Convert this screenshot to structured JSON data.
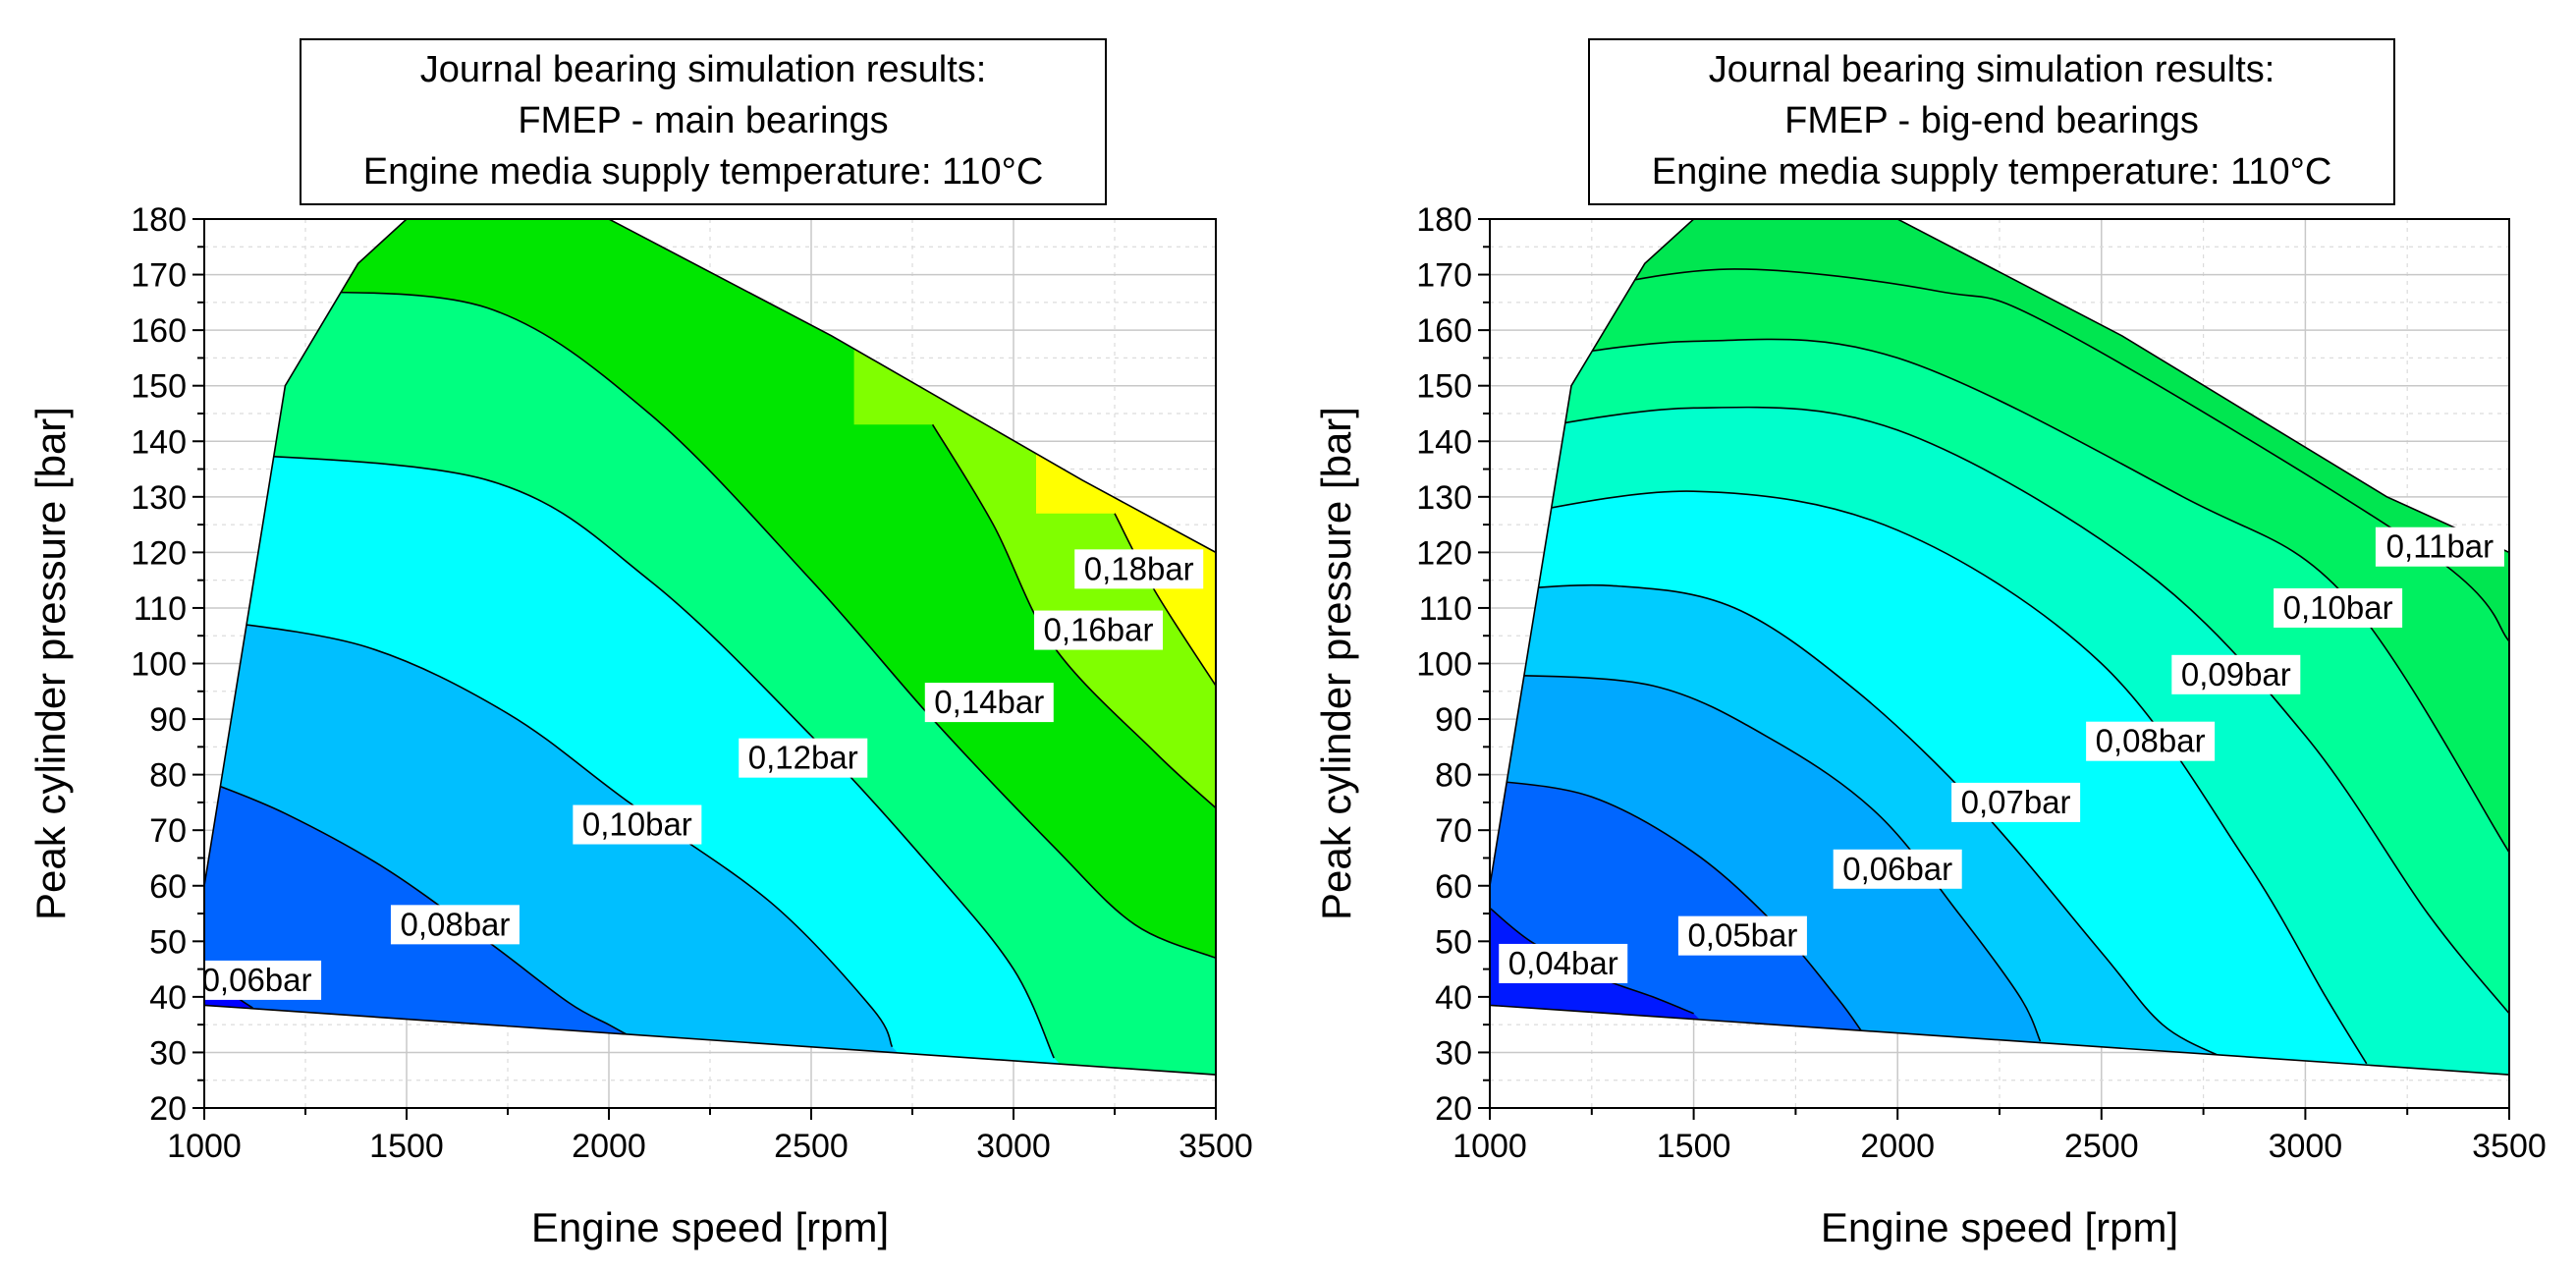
{
  "chart_data": [
    {
      "type": "contour",
      "title_lines": [
        "Journal bearing simulation results:",
        "FMEP - main bearings",
        "Engine media supply temperature: 110°C"
      ],
      "xlabel": "Engine speed [rpm]",
      "ylabel": "Peak cylinder pressure [bar]",
      "xlim": [
        1000,
        3500
      ],
      "ylim": [
        20,
        180
      ],
      "xticks": [
        1000,
        1500,
        2000,
        2500,
        3000,
        3500
      ],
      "yticks": [
        20,
        30,
        40,
        50,
        60,
        70,
        80,
        90,
        100,
        110,
        120,
        130,
        140,
        150,
        160,
        170,
        180
      ],
      "grid": true,
      "domain_boundary": [
        [
          1000,
          38.5
        ],
        [
          3500,
          26
        ],
        [
          3500,
          120
        ],
        [
          3170,
          133
        ],
        [
          2550,
          159
        ],
        [
          2000,
          180
        ],
        [
          1500,
          180
        ],
        [
          1380,
          172
        ],
        [
          1200,
          150
        ],
        [
          1000,
          60
        ]
      ],
      "fill_colors": [
        "#0000ff",
        "#0064ff",
        "#00bfff",
        "#00ffff",
        "#00ff80",
        "#00e600",
        "#80ff00",
        "#ffff00",
        "#ff8000"
      ],
      "contour_levels": [
        {
          "label": "0,06bar",
          "value": 0.06,
          "line": [
            [
              1000,
              46
            ],
            [
              1040,
              43
            ],
            [
              1080,
              40
            ],
            [
              1120,
              38
            ]
          ],
          "label_pos": [
            1130,
            43
          ]
        },
        {
          "label": "0,08bar",
          "value": 0.08,
          "line": [
            [
              1000,
              79
            ],
            [
              1200,
              73
            ],
            [
              1450,
              63
            ],
            [
              1700,
              50
            ],
            [
              1900,
              39
            ],
            [
              2000,
              35
            ],
            [
              2050,
              33
            ]
          ],
          "label_pos": [
            1620,
            53
          ]
        },
        {
          "label": "0,10bar",
          "value": 0.1,
          "line": [
            [
              1000,
              108
            ],
            [
              1400,
              103
            ],
            [
              1750,
              91
            ],
            [
              2050,
              75
            ],
            [
              2400,
              57
            ],
            [
              2650,
              38
            ],
            [
              2700,
              31
            ]
          ],
          "label_pos": [
            2070,
            71
          ]
        },
        {
          "label": "0,12bar",
          "value": 0.12,
          "line": [
            [
              1000,
              138
            ],
            [
              1700,
              133
            ],
            [
              2100,
              115
            ],
            [
              2500,
              87
            ],
            [
              2800,
              63
            ],
            [
              3000,
              45
            ],
            [
              3100,
              29
            ]
          ],
          "label_pos": [
            2480,
            83
          ]
        },
        {
          "label": "0,14bar",
          "value": 0.14,
          "line": [
            [
              1200,
              167
            ],
            [
              1700,
              164
            ],
            [
              2100,
              145
            ],
            [
              2500,
              115
            ],
            [
              2800,
              90
            ],
            [
              3100,
              67
            ],
            [
              3300,
              53
            ],
            [
              3500,
              47
            ]
          ],
          "label_pos": [
            2940,
            93
          ]
        },
        {
          "label": "0,16bar",
          "value": 0.16,
          "line": [
            [
              2800,
              143
            ],
            [
              2950,
              125
            ],
            [
              3100,
              103
            ],
            [
              3350,
              84
            ],
            [
              3500,
              74
            ]
          ],
          "label_pos": [
            3210,
            106
          ]
        },
        {
          "label": "0,18bar",
          "value": 0.18,
          "line": [
            [
              3250,
              127
            ],
            [
              3350,
              113
            ],
            [
              3500,
              96
            ]
          ],
          "label_pos": [
            3310,
            117
          ]
        }
      ]
    },
    {
      "type": "contour",
      "title_lines": [
        "Journal bearing simulation results:",
        "FMEP - big-end bearings",
        "Engine media supply temperature: 110°C"
      ],
      "xlabel": "Engine speed [rpm]",
      "ylabel": "Peak cylinder pressure [bar]",
      "xlim": [
        1000,
        3500
      ],
      "ylim": [
        20,
        180
      ],
      "xticks": [
        1000,
        1500,
        2000,
        2500,
        3000,
        3500
      ],
      "yticks": [
        20,
        30,
        40,
        50,
        60,
        70,
        80,
        90,
        100,
        110,
        120,
        130,
        140,
        150,
        160,
        170,
        180
      ],
      "grid": true,
      "domain_boundary": [
        [
          1000,
          38.5
        ],
        [
          3500,
          26
        ],
        [
          3500,
          120
        ],
        [
          3200,
          130
        ],
        [
          2550,
          159
        ],
        [
          2000,
          180
        ],
        [
          1500,
          180
        ],
        [
          1380,
          172
        ],
        [
          1200,
          150
        ],
        [
          1000,
          60
        ]
      ],
      "fill_colors": [
        "#0019ff",
        "#0066ff",
        "#00a8ff",
        "#00ccff",
        "#00ffff",
        "#00ffcc",
        "#00ff99",
        "#00f060",
        "#00e650"
      ],
      "contour_levels": [
        {
          "label": "0,04bar",
          "value": 0.04,
          "line": [
            [
              1000,
              56
            ],
            [
              1100,
              50
            ],
            [
              1250,
              44
            ],
            [
              1400,
              40
            ],
            [
              1500,
              37
            ]
          ],
          "label_pos": [
            1180,
            46
          ]
        },
        {
          "label": "0,05bar",
          "value": 0.05,
          "line": [
            [
              1000,
              79
            ],
            [
              1250,
              76
            ],
            [
              1500,
              66
            ],
            [
              1700,
              53
            ],
            [
              1850,
              40
            ],
            [
              1910,
              34
            ]
          ],
          "label_pos": [
            1620,
            51
          ]
        },
        {
          "label": "0,06bar",
          "value": 0.06,
          "line": [
            [
              1000,
              98
            ],
            [
              1400,
              96
            ],
            [
              1700,
              86
            ],
            [
              1950,
              73
            ],
            [
              2150,
              55
            ],
            [
              2300,
              40
            ],
            [
              2350,
              32
            ]
          ],
          "label_pos": [
            2000,
            63
          ]
        },
        {
          "label": "0,07bar",
          "value": 0.07,
          "line": [
            [
              1000,
              113
            ],
            [
              1300,
              114
            ],
            [
              1600,
              110
            ],
            [
              1900,
              95
            ],
            [
              2200,
              74
            ],
            [
              2500,
              48
            ],
            [
              2650,
              35
            ],
            [
              2800,
              29
            ]
          ],
          "label_pos": [
            2290,
            75
          ]
        },
        {
          "label": "0,08bar",
          "value": 0.08,
          "line": [
            [
              1000,
              126
            ],
            [
              1500,
              131
            ],
            [
              2000,
              124
            ],
            [
              2500,
              100
            ],
            [
              2850,
              65
            ],
            [
              3050,
              40
            ],
            [
              3150,
              28
            ]
          ],
          "label_pos": [
            2620,
            86
          ]
        },
        {
          "label": "0,09bar",
          "value": 0.09,
          "line": [
            [
              1000,
              141
            ],
            [
              1500,
              146
            ],
            [
              2000,
              142
            ],
            [
              2600,
              117
            ],
            [
              3000,
              87
            ],
            [
              3300,
              55
            ],
            [
              3500,
              37
            ]
          ],
          "label_pos": [
            2830,
            98
          ]
        },
        {
          "label": "0,10bar",
          "value": 0.1,
          "line": [
            [
              1050,
              154
            ],
            [
              1500,
              158
            ],
            [
              2000,
              155
            ],
            [
              2700,
              130
            ],
            [
              3100,
              112
            ],
            [
              3500,
              66
            ]
          ],
          "label_pos": [
            3080,
            110
          ]
        },
        {
          "label": "0,11bar",
          "value": 0.11,
          "line": [
            [
              1200,
              167
            ],
            [
              1600,
              171
            ],
            [
              2100,
              167
            ],
            [
              2400,
              160
            ],
            [
              3300,
              120
            ],
            [
              3500,
              104
            ]
          ],
          "label_pos": [
            3330,
            121
          ]
        }
      ]
    }
  ]
}
